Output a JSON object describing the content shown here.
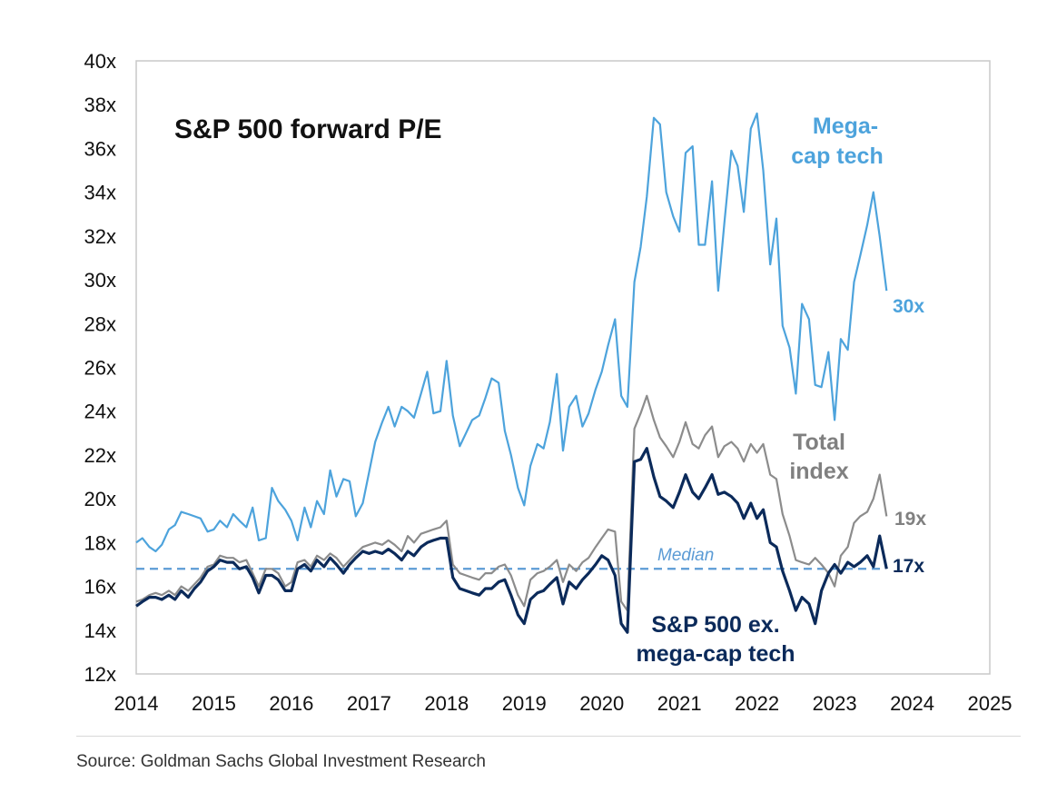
{
  "chart_data": {
    "type": "line",
    "title": "S&P 500 forward P/E",
    "xlabel": "",
    "ylabel": "",
    "xlim": [
      2014,
      2025
    ],
    "ylim": [
      12,
      40
    ],
    "x_ticks": [
      "2014",
      "2015",
      "2016",
      "2017",
      "2018",
      "2019",
      "2020",
      "2021",
      "2022",
      "2023",
      "2024",
      "2025"
    ],
    "y_ticks": [
      "40x",
      "38x",
      "36x",
      "34x",
      "32x",
      "30x",
      "28x",
      "26x",
      "24x",
      "22x",
      "20x",
      "18x",
      "16x",
      "14x",
      "12x"
    ],
    "series": [
      {
        "name": "Mega-cap tech",
        "color": "#4da3dc",
        "x": [
          2014.0,
          2014.08,
          2014.17,
          2014.25,
          2014.33,
          2014.42,
          2014.5,
          2014.58,
          2014.67,
          2014.75,
          2014.83,
          2014.92,
          2015.0,
          2015.08,
          2015.17,
          2015.25,
          2015.33,
          2015.42,
          2015.5,
          2015.58,
          2015.67,
          2015.75,
          2015.83,
          2015.92,
          2016.0,
          2016.08,
          2016.17,
          2016.25,
          2016.33,
          2016.42,
          2016.5,
          2016.58,
          2016.67,
          2016.75,
          2016.83,
          2016.92,
          2017.0,
          2017.08,
          2017.17,
          2017.25,
          2017.33,
          2017.42,
          2017.5,
          2017.58,
          2017.67,
          2017.75,
          2017.83,
          2017.92,
          2018.0,
          2018.08,
          2018.17,
          2018.25,
          2018.33,
          2018.42,
          2018.5,
          2018.58,
          2018.67,
          2018.75,
          2018.83,
          2018.92,
          2019.0,
          2019.08,
          2019.17,
          2019.25,
          2019.33,
          2019.42,
          2019.5,
          2019.58,
          2019.67,
          2019.75,
          2019.83,
          2019.92,
          2020.0,
          2020.08,
          2020.17,
          2020.25,
          2020.33,
          2020.42,
          2020.5,
          2020.58,
          2020.67,
          2020.75,
          2020.83,
          2020.92,
          2021.0,
          2021.08,
          2021.17,
          2021.25,
          2021.33,
          2021.42,
          2021.5,
          2021.58,
          2021.67,
          2021.75,
          2021.83,
          2021.92,
          2022.0,
          2022.08,
          2022.17,
          2022.25,
          2022.33,
          2022.42,
          2022.5,
          2022.58,
          2022.67,
          2022.75,
          2022.83,
          2022.92,
          2023.0,
          2023.08,
          2023.17,
          2023.25,
          2023.33,
          2023.42,
          2023.5,
          2023.58,
          2023.67
        ],
        "values": [
          18.0,
          18.2,
          17.8,
          17.6,
          17.9,
          18.6,
          18.8,
          19.4,
          19.3,
          19.2,
          19.1,
          18.5,
          18.6,
          19.0,
          18.7,
          19.3,
          19.0,
          18.7,
          19.6,
          18.1,
          18.2,
          20.5,
          19.9,
          19.5,
          19.0,
          18.1,
          19.6,
          18.7,
          19.9,
          19.3,
          21.3,
          20.1,
          20.9,
          20.8,
          19.2,
          19.8,
          21.2,
          22.6,
          23.5,
          24.2,
          23.3,
          24.2,
          24.0,
          23.7,
          24.8,
          25.8,
          23.9,
          24.0,
          26.3,
          23.8,
          22.4,
          23.0,
          23.6,
          23.8,
          24.6,
          25.5,
          25.3,
          23.1,
          22.0,
          20.5,
          19.7,
          21.5,
          22.5,
          22.3,
          23.5,
          25.7,
          22.2,
          24.2,
          24.7,
          23.3,
          23.9,
          25.0,
          25.8,
          27.0,
          28.2,
          24.7,
          24.2,
          29.9,
          31.5,
          33.8,
          37.4,
          37.1,
          34.0,
          32.9,
          32.2,
          35.8,
          36.1,
          31.6,
          31.6,
          34.5,
          29.5,
          32.6,
          35.9,
          35.2,
          33.1,
          36.9,
          37.6,
          35.0,
          30.7,
          32.8,
          27.9,
          26.9,
          24.8,
          28.9,
          28.2,
          25.2,
          25.1,
          26.7,
          23.6,
          27.3,
          26.8,
          29.9,
          31.1,
          32.5,
          34.0,
          32.0,
          29.5
        ]
      },
      {
        "name": "Total index",
        "color": "#8c8c8c",
        "x": [
          2014.0,
          2014.08,
          2014.17,
          2014.25,
          2014.33,
          2014.42,
          2014.5,
          2014.58,
          2014.67,
          2014.75,
          2014.83,
          2014.92,
          2015.0,
          2015.08,
          2015.17,
          2015.25,
          2015.33,
          2015.42,
          2015.5,
          2015.58,
          2015.67,
          2015.75,
          2015.83,
          2015.92,
          2016.0,
          2016.08,
          2016.17,
          2016.25,
          2016.33,
          2016.42,
          2016.5,
          2016.58,
          2016.67,
          2016.75,
          2016.83,
          2016.92,
          2017.0,
          2017.08,
          2017.17,
          2017.25,
          2017.33,
          2017.42,
          2017.5,
          2017.58,
          2017.67,
          2017.75,
          2017.83,
          2017.92,
          2018.0,
          2018.08,
          2018.17,
          2018.25,
          2018.33,
          2018.42,
          2018.5,
          2018.58,
          2018.67,
          2018.75,
          2018.83,
          2018.92,
          2019.0,
          2019.08,
          2019.17,
          2019.25,
          2019.33,
          2019.42,
          2019.5,
          2019.58,
          2019.67,
          2019.75,
          2019.83,
          2019.92,
          2020.0,
          2020.08,
          2020.17,
          2020.25,
          2020.33,
          2020.42,
          2020.5,
          2020.58,
          2020.67,
          2020.75,
          2020.83,
          2020.92,
          2021.0,
          2021.08,
          2021.17,
          2021.25,
          2021.33,
          2021.42,
          2021.5,
          2021.58,
          2021.67,
          2021.75,
          2021.83,
          2021.92,
          2022.0,
          2022.08,
          2022.17,
          2022.25,
          2022.33,
          2022.42,
          2022.5,
          2022.58,
          2022.67,
          2022.75,
          2022.83,
          2022.92,
          2023.0,
          2023.08,
          2023.17,
          2023.25,
          2023.33,
          2023.42,
          2023.5,
          2023.58,
          2023.67
        ],
        "values": [
          15.3,
          15.4,
          15.6,
          15.7,
          15.6,
          15.8,
          15.6,
          16.0,
          15.8,
          16.1,
          16.4,
          16.9,
          17.0,
          17.4,
          17.3,
          17.3,
          17.1,
          17.2,
          16.6,
          16.0,
          16.8,
          16.8,
          16.6,
          16.0,
          16.2,
          17.1,
          17.2,
          16.9,
          17.4,
          17.2,
          17.5,
          17.3,
          16.9,
          17.2,
          17.5,
          17.8,
          17.9,
          18.0,
          17.9,
          18.1,
          17.9,
          17.6,
          18.3,
          18.0,
          18.4,
          18.5,
          18.6,
          18.7,
          19.0,
          17.0,
          16.6,
          16.5,
          16.4,
          16.3,
          16.6,
          16.6,
          16.9,
          17.0,
          16.5,
          15.6,
          15.1,
          16.3,
          16.6,
          16.7,
          16.9,
          17.2,
          16.2,
          17.0,
          16.7,
          17.1,
          17.3,
          17.8,
          18.2,
          18.6,
          18.5,
          15.3,
          14.9,
          23.2,
          23.9,
          24.7,
          23.6,
          22.8,
          22.4,
          21.9,
          22.6,
          23.5,
          22.5,
          22.3,
          22.9,
          23.3,
          21.9,
          22.4,
          22.6,
          22.3,
          21.7,
          22.5,
          22.1,
          22.5,
          21.1,
          20.9,
          19.3,
          18.3,
          17.2,
          17.1,
          17.0,
          17.3,
          17.0,
          16.6,
          16.0,
          17.4,
          17.8,
          18.9,
          19.2,
          19.4,
          20.0,
          21.1,
          19.2
        ]
      },
      {
        "name": "S&P 500 ex. mega-cap tech",
        "color": "#0b2a5a",
        "x": [
          2014.0,
          2014.08,
          2014.17,
          2014.25,
          2014.33,
          2014.42,
          2014.5,
          2014.58,
          2014.67,
          2014.75,
          2014.83,
          2014.92,
          2015.0,
          2015.08,
          2015.17,
          2015.25,
          2015.33,
          2015.42,
          2015.5,
          2015.58,
          2015.67,
          2015.75,
          2015.83,
          2015.92,
          2016.0,
          2016.08,
          2016.17,
          2016.25,
          2016.33,
          2016.42,
          2016.5,
          2016.58,
          2016.67,
          2016.75,
          2016.83,
          2016.92,
          2017.0,
          2017.08,
          2017.17,
          2017.25,
          2017.33,
          2017.42,
          2017.5,
          2017.58,
          2017.67,
          2017.75,
          2017.83,
          2017.92,
          2018.0,
          2018.08,
          2018.17,
          2018.25,
          2018.33,
          2018.42,
          2018.5,
          2018.58,
          2018.67,
          2018.75,
          2018.83,
          2018.92,
          2019.0,
          2019.08,
          2019.17,
          2019.25,
          2019.33,
          2019.42,
          2019.5,
          2019.58,
          2019.67,
          2019.75,
          2019.83,
          2019.92,
          2020.0,
          2020.08,
          2020.17,
          2020.25,
          2020.33,
          2020.42,
          2020.5,
          2020.58,
          2020.67,
          2020.75,
          2020.83,
          2020.92,
          2021.0,
          2021.08,
          2021.17,
          2021.25,
          2021.33,
          2021.42,
          2021.5,
          2021.58,
          2021.67,
          2021.75,
          2021.83,
          2021.92,
          2022.0,
          2022.08,
          2022.17,
          2022.25,
          2022.33,
          2022.42,
          2022.5,
          2022.58,
          2022.67,
          2022.75,
          2022.83,
          2022.92,
          2023.0,
          2023.08,
          2023.17,
          2023.25,
          2023.33,
          2023.42,
          2023.5,
          2023.58,
          2023.67
        ],
        "values": [
          15.1,
          15.3,
          15.5,
          15.5,
          15.4,
          15.6,
          15.4,
          15.8,
          15.5,
          15.9,
          16.2,
          16.7,
          16.9,
          17.2,
          17.1,
          17.1,
          16.8,
          16.9,
          16.4,
          15.7,
          16.5,
          16.5,
          16.3,
          15.8,
          15.8,
          16.8,
          17.0,
          16.7,
          17.2,
          16.9,
          17.3,
          17.0,
          16.6,
          17.0,
          17.3,
          17.6,
          17.5,
          17.6,
          17.5,
          17.7,
          17.5,
          17.2,
          17.6,
          17.4,
          17.8,
          18.0,
          18.1,
          18.2,
          18.2,
          16.4,
          15.9,
          15.8,
          15.7,
          15.6,
          15.9,
          15.9,
          16.2,
          16.3,
          15.6,
          14.7,
          14.3,
          15.4,
          15.7,
          15.8,
          16.1,
          16.4,
          15.2,
          16.2,
          15.9,
          16.3,
          16.6,
          17.0,
          17.4,
          17.2,
          16.5,
          14.3,
          13.9,
          21.7,
          21.8,
          22.3,
          21.0,
          20.1,
          19.9,
          19.6,
          20.3,
          21.1,
          20.3,
          20.0,
          20.5,
          21.1,
          20.2,
          20.3,
          20.1,
          19.8,
          19.1,
          19.8,
          19.1,
          19.5,
          18.0,
          17.8,
          16.7,
          15.8,
          14.9,
          15.5,
          15.2,
          14.3,
          15.8,
          16.6,
          17.0,
          16.6,
          17.1,
          16.9,
          17.1,
          17.4,
          16.9,
          18.3,
          16.8
        ]
      }
    ],
    "reference_lines": [
      {
        "name": "Median",
        "value": 16.8,
        "color": "#5b9bd5",
        "style": "dashed"
      }
    ],
    "annotations": {
      "mega_cap_label_1": "Mega-",
      "mega_cap_label_2": "cap tech",
      "mega_cap_end": "30x",
      "total_label_1": "Total",
      "total_label_2": "index",
      "total_end": "19x",
      "ex_label_1": "S&P 500 ex.",
      "ex_label_2": "mega-cap tech",
      "ex_end": "17x",
      "median_label": "Median"
    },
    "source": "Source: Goldman Sachs Global Investment Research"
  }
}
